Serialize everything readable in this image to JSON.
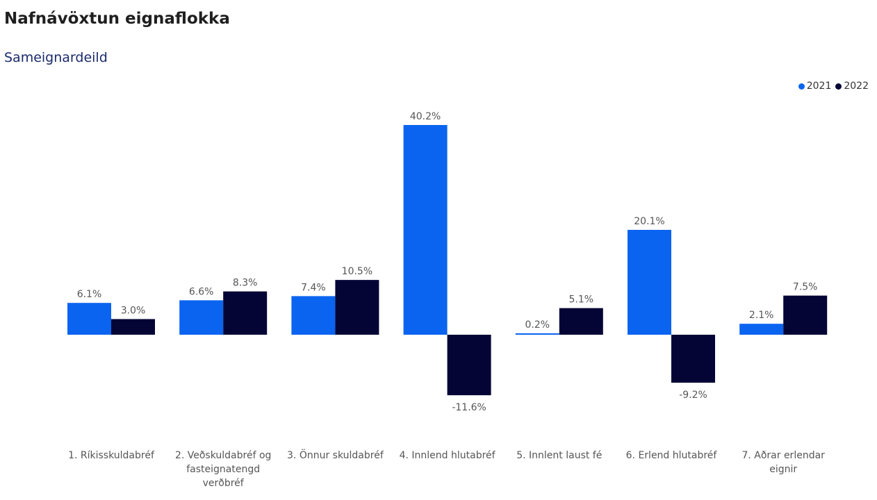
{
  "title": "Nafnávöxtun eignaflokka",
  "subtitle": "Sameignardeild",
  "colors": {
    "s2021": "#0A64F0",
    "s2022": "#050535"
  },
  "chart_data": {
    "type": "bar",
    "categories": [
      "1. Ríkisskuldabréf",
      "2. Veðskuldabréf og fasteignatengd verðbréf",
      "3. Önnur skuldabréf",
      "4. Innlend hlutabréf",
      "5. Innlent laust fé",
      "6. Erlend hlutabréf",
      "7. Aðrar erlendar eignir"
    ],
    "series": [
      {
        "name": "2021",
        "values": [
          6.1,
          6.6,
          7.4,
          40.2,
          0.2,
          20.1,
          2.1
        ],
        "labels": [
          "6.1%",
          "6.6%",
          "7.4%",
          "40.2%",
          "0.2%",
          "20.1%",
          "2.1%"
        ]
      },
      {
        "name": "2022",
        "values": [
          3.0,
          8.3,
          10.5,
          -11.6,
          5.1,
          -9.2,
          7.5
        ],
        "labels": [
          "3.0%",
          "8.3%",
          "10.5%",
          "-11.6%",
          "5.1%",
          "-9.2%",
          "7.5%"
        ]
      }
    ],
    "ylim": [
      -11.6,
      40.2
    ],
    "legend": "top-right",
    "grid": false
  }
}
